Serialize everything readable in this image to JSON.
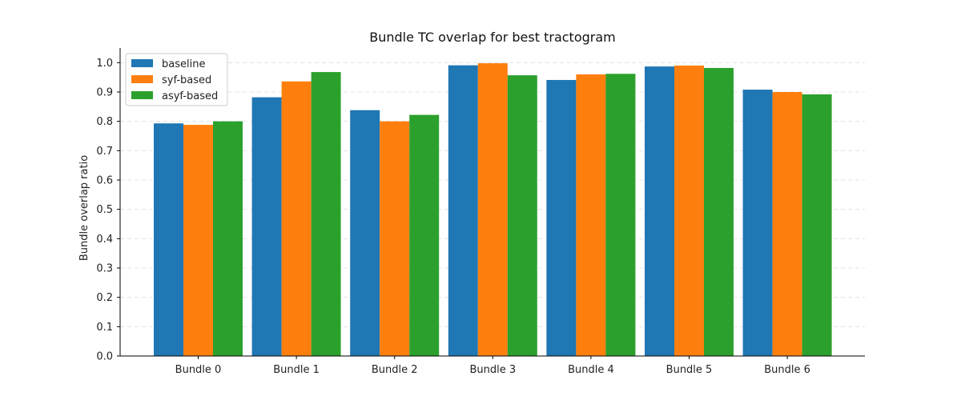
{
  "chart_data": {
    "type": "bar",
    "title": "Bundle TC overlap for best tractogram",
    "xlabel": "",
    "ylabel": "Bundle overlap ratio",
    "categories": [
      "Bundle 0",
      "Bundle 1",
      "Bundle 2",
      "Bundle 3",
      "Bundle 4",
      "Bundle 5",
      "Bundle 6"
    ],
    "series": [
      {
        "name": "baseline",
        "color": "#1f77b4",
        "values": [
          0.793,
          0.882,
          0.838,
          0.991,
          0.941,
          0.987,
          0.908
        ]
      },
      {
        "name": "syf-based",
        "color": "#ff7f0e",
        "values": [
          0.788,
          0.936,
          0.8,
          0.998,
          0.96,
          0.99,
          0.9
        ]
      },
      {
        "name": "asyf-based",
        "color": "#2ca02c",
        "values": [
          0.8,
          0.968,
          0.822,
          0.957,
          0.962,
          0.982,
          0.892
        ]
      }
    ],
    "ylim": [
      0,
      1.05
    ],
    "yticks": [
      0.0,
      0.1,
      0.2,
      0.3,
      0.4,
      0.5,
      0.6,
      0.7,
      0.8,
      0.9,
      1.0
    ],
    "ytick_labels": [
      "0.0",
      "0.1",
      "0.2",
      "0.3",
      "0.4",
      "0.5",
      "0.6",
      "0.7",
      "0.8",
      "0.9",
      "1.0"
    ],
    "grid": "y-dashed",
    "legend_position": "top-left"
  }
}
